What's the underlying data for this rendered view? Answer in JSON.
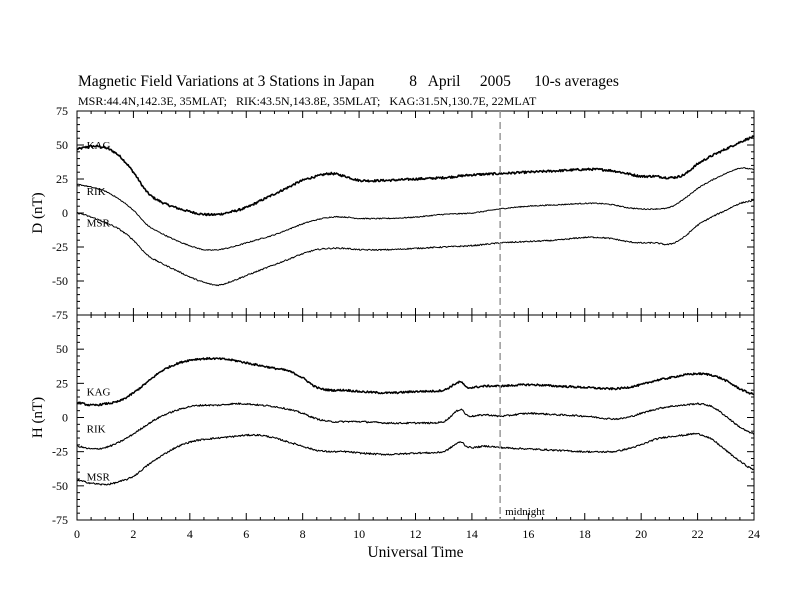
{
  "header": {
    "title_parts": [
      "Magnetic Field Variations at 3 Stations in Japan",
      "8",
      "April",
      "2005",
      "10-s averages"
    ],
    "subtitle": "MSR:44.4N,142.3E, 35MLAT;   RIK:43.5N,143.8E, 35MLAT;   KAG:31.5N,130.7E, 22MLAT"
  },
  "chart_data": {
    "type": "line",
    "xlabel": "Universal Time",
    "xlim": [
      0,
      24
    ],
    "x_ticks": [
      0,
      2,
      4,
      6,
      8,
      10,
      12,
      14,
      16,
      18,
      20,
      22,
      24
    ],
    "midnight_x": 15,
    "midnight_label": "midnight",
    "panels": [
      {
        "ylabel": "D (nT)",
        "ylim": [
          -75,
          75
        ],
        "y_ticks": [
          75,
          50,
          25,
          0,
          -25,
          -50,
          -75
        ],
        "series": [
          {
            "name": "KAG",
            "label_pos": [
              0.2,
              50
            ],
            "x": [
              0,
              0.5,
              1,
              1.5,
              2,
              2.5,
              3,
              3.5,
              4,
              4.5,
              5,
              5.5,
              6,
              6.5,
              7,
              7.5,
              8,
              8.5,
              9,
              9.5,
              10,
              11,
              12,
              13,
              14,
              15,
              16,
              17,
              18,
              18.5,
              19,
              19.5,
              20,
              20.5,
              21,
              21.5,
              22,
              22.5,
              23,
              23.5,
              24
            ],
            "y": [
              47,
              49,
              48,
              42,
              30,
              15,
              8,
              4,
              1,
              -1,
              -1,
              1,
              4,
              9,
              14,
              19,
              24,
              27,
              29,
              27,
              24,
              24,
              25,
              26,
              28,
              29,
              30,
              31,
              32,
              32,
              31,
              29,
              27,
              27,
              26,
              28,
              36,
              42,
              47,
              52,
              56
            ],
            "noise": 0.8,
            "width": 1.6
          },
          {
            "name": "RIK",
            "label_pos": [
              0.2,
              16
            ],
            "x": [
              0,
              0.5,
              1,
              1.5,
              2,
              2.5,
              3,
              3.5,
              4,
              4.5,
              5,
              5.5,
              6,
              6.5,
              7,
              7.5,
              8,
              8.5,
              9,
              9.5,
              10,
              11,
              12,
              13,
              14,
              15,
              16,
              17,
              18,
              18.5,
              19,
              19.5,
              20,
              20.5,
              21,
              21.5,
              22,
              22.5,
              23,
              23.5,
              24
            ],
            "y": [
              21,
              19,
              16,
              10,
              2,
              -9,
              -15,
              -20,
              -24,
              -27,
              -27,
              -25,
              -22,
              -19,
              -16,
              -12,
              -8,
              -5,
              -3,
              -3,
              -4,
              -4,
              -3,
              -1,
              0,
              3,
              5,
              6,
              7,
              7,
              6,
              4,
              3,
              3,
              4,
              10,
              18,
              24,
              29,
              33,
              32
            ],
            "noise": 0.4,
            "width": 1.0
          },
          {
            "name": "MSR",
            "label_pos": [
              0.2,
              -7
            ],
            "x": [
              0,
              0.5,
              1,
              1.5,
              2,
              2.5,
              3,
              3.5,
              4,
              4.5,
              5,
              5.5,
              6,
              6.5,
              7,
              7.5,
              8,
              8.5,
              9,
              9.5,
              10,
              11,
              12,
              13,
              14,
              15,
              16,
              17,
              18,
              18.5,
              19,
              19.5,
              20,
              20.5,
              21,
              21.5,
              22,
              22.5,
              23,
              23.5,
              24
            ],
            "y": [
              0,
              -3,
              -7,
              -12,
              -20,
              -31,
              -37,
              -42,
              -47,
              -51,
              -53,
              -50,
              -46,
              -42,
              -38,
              -34,
              -30,
              -27,
              -26,
              -26,
              -27,
              -27,
              -26,
              -25,
              -24,
              -22,
              -21,
              -20,
              -18,
              -18,
              -19,
              -21,
              -22,
              -22,
              -23,
              -18,
              -9,
              -3,
              2,
              7,
              9
            ],
            "noise": 0.5,
            "width": 1.0
          }
        ]
      },
      {
        "ylabel": "H (nT)",
        "ylim": [
          -75,
          75
        ],
        "y_ticks": [
          75,
          50,
          25,
          0,
          -25,
          -50,
          -75
        ],
        "series": [
          {
            "name": "KAG",
            "label_pos": [
              0.2,
              19
            ],
            "x": [
              0,
              0.5,
              1,
              1.5,
              2,
              2.5,
              3,
              3.5,
              4,
              4.5,
              5,
              5.5,
              6,
              6.5,
              7,
              7.5,
              8,
              8.5,
              9,
              9.5,
              10,
              11,
              12,
              13,
              13.6,
              13.8,
              14,
              14.5,
              15,
              16,
              17,
              18,
              19,
              19.5,
              20,
              20.5,
              21,
              21.5,
              22,
              22.5,
              23,
              23.5,
              24
            ],
            "y": [
              11,
              9,
              10,
              12,
              18,
              26,
              34,
              39,
              42,
              43,
              43,
              42,
              40,
              38,
              36,
              34,
              29,
              22,
              20,
              20,
              19,
              18,
              19,
              20,
              26,
              22,
              22,
              23,
              23,
              24,
              23,
              22,
              21,
              22,
              24,
              27,
              29,
              31,
              32,
              31,
              27,
              21,
              17
            ],
            "noise": 0.7,
            "width": 1.5
          },
          {
            "name": "RIK",
            "label_pos": [
              0.2,
              -8
            ],
            "x": [
              0,
              0.5,
              1,
              1.5,
              2,
              2.5,
              3,
              3.5,
              4,
              4.5,
              5,
              5.5,
              6,
              6.5,
              7,
              7.5,
              8,
              8.5,
              9,
              9.5,
              10,
              11,
              12,
              13,
              13.6,
              13.8,
              14,
              14.5,
              15,
              16,
              17,
              18,
              19,
              19.5,
              20,
              20.5,
              21,
              21.5,
              22,
              22.5,
              23,
              23.5,
              24
            ],
            "y": [
              -21,
              -23,
              -22,
              -18,
              -12,
              -5,
              1,
              5,
              8,
              9,
              9,
              10,
              10,
              9,
              8,
              6,
              3,
              -1,
              -3,
              -3,
              -3,
              -4,
              -4,
              -3,
              6,
              2,
              1,
              2,
              1,
              3,
              2,
              1,
              -1,
              0,
              3,
              6,
              8,
              9,
              10,
              8,
              1,
              -7,
              -12
            ],
            "noise": 0.6,
            "width": 1.1
          },
          {
            "name": "MSR",
            "label_pos": [
              0.2,
              -43
            ],
            "x": [
              0,
              0.5,
              1,
              1.5,
              2,
              2.5,
              3,
              3.5,
              4,
              4.5,
              5,
              5.5,
              6,
              6.5,
              7,
              7.5,
              8,
              8.5,
              9,
              9.5,
              10,
              11,
              12,
              13,
              13.6,
              13.8,
              14,
              14.5,
              15,
              16,
              17,
              18,
              19,
              19.5,
              20,
              20.5,
              21,
              21.5,
              22,
              22.5,
              23,
              23.5,
              24
            ],
            "y": [
              -46,
              -48,
              -49,
              -47,
              -43,
              -35,
              -28,
              -22,
              -18,
              -16,
              -15,
              -14,
              -13,
              -13,
              -15,
              -18,
              -21,
              -24,
              -25,
              -25,
              -26,
              -27,
              -26,
              -25,
              -18,
              -21,
              -22,
              -21,
              -22,
              -23,
              -24,
              -25,
              -25,
              -23,
              -20,
              -16,
              -14,
              -13,
              -12,
              -16,
              -24,
              -32,
              -38
            ],
            "noise": 0.6,
            "width": 1.1
          }
        ]
      }
    ]
  }
}
